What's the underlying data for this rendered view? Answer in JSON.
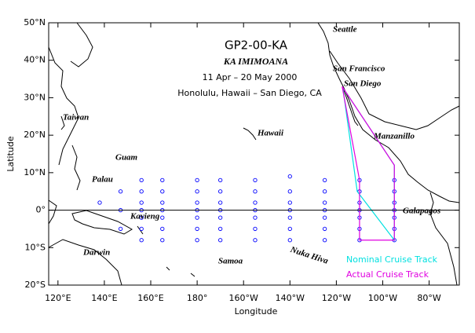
{
  "chart_data": {
    "type": "scatter",
    "title": "GP2-00-KA",
    "subtitle": "KA IMIMOANA",
    "annotations": [
      "11 Apr – 20 May 2000",
      "Honolulu, Hawaii – San Diego, CA"
    ],
    "x_label": "Longitude",
    "y_label": "Latitude",
    "places": [
      "Seattle",
      "San Francisco",
      "San Diego",
      "Taiwan",
      "Hawaii",
      "Manzanillo",
      "Guam",
      "Palau",
      "Kavieng",
      "Galapagos",
      "Nuka Hiva",
      "Darwin",
      "Samoa"
    ],
    "xlim": [
      116,
      293
    ],
    "ylim": [
      -20,
      50
    ],
    "xticks": [
      {
        "value": 120,
        "label": "120°E"
      },
      {
        "value": 140,
        "label": "140°E"
      },
      {
        "value": 160,
        "label": "160°E"
      },
      {
        "value": 180,
        "label": "180°"
      },
      {
        "value": 200,
        "label": "160°W"
      },
      {
        "value": 220,
        "label": "140°W"
      },
      {
        "value": 240,
        "label": "120°W"
      },
      {
        "value": 260,
        "label": "100°W"
      },
      {
        "value": 280,
        "label": "80°W"
      }
    ],
    "yticks": [
      {
        "value": 50,
        "label": "50°N"
      },
      {
        "value": 40,
        "label": "40°N"
      },
      {
        "value": 30,
        "label": "30°N"
      },
      {
        "value": 20,
        "label": "20°N"
      },
      {
        "value": 10,
        "label": "10°N"
      },
      {
        "value": 0,
        "label": "0°"
      },
      {
        "value": -10,
        "label": "10°S"
      },
      {
        "value": -20,
        "label": "20°S"
      }
    ],
    "stations": {
      "color": "#0000ff",
      "x": [
        138,
        147,
        147,
        147,
        156,
        156,
        156,
        156,
        156,
        156,
        156,
        165,
        165,
        165,
        165,
        165,
        165,
        165,
        180,
        180,
        180,
        180,
        180,
        180,
        180,
        190,
        190,
        190,
        190,
        190,
        190,
        190,
        205,
        205,
        205,
        205,
        205,
        205,
        205,
        220,
        220,
        220,
        220,
        220,
        220,
        220,
        235,
        235,
        235,
        235,
        235,
        235,
        235,
        250,
        250,
        250,
        250,
        250,
        250,
        250,
        265,
        265,
        265,
        265,
        265,
        265,
        265
      ],
      "y": [
        2,
        5,
        0,
        -5,
        8,
        5,
        2,
        0,
        -2,
        -5,
        -8,
        8,
        5,
        2,
        0,
        -2,
        -5,
        -8,
        8,
        5,
        2,
        0,
        -2,
        -5,
        -8,
        8,
        5,
        2,
        0,
        -2,
        -5,
        -8,
        8,
        5,
        2,
        0,
        -2,
        -5,
        -8,
        9,
        5,
        2,
        0,
        -2,
        -5,
        -8,
        8,
        5,
        2,
        0,
        -2,
        -5,
        -8,
        8,
        5,
        2,
        0,
        -2,
        -5,
        -8,
        8,
        5,
        2,
        0,
        -2,
        -5,
        -8
      ]
    },
    "series": [
      {
        "name": "Nominal Cruise Track",
        "color": "#00e0e0",
        "x": [
          242.8,
          249,
          265,
          265,
          242.8
        ],
        "y": [
          32.7,
          5,
          -8,
          12,
          32.7
        ]
      },
      {
        "name": "Actual Cruise Track",
        "color": "#e000e0",
        "x": [
          242.5,
          250,
          250,
          265,
          265,
          242.5
        ],
        "y": [
          33,
          8,
          -8,
          -8,
          12,
          33
        ]
      }
    ]
  }
}
